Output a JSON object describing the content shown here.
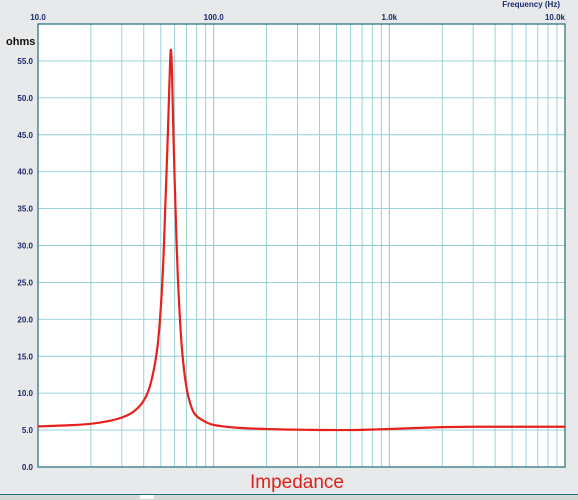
{
  "chart_data": {
    "type": "line",
    "title": "Impedance",
    "xlabel": "Frequency   (Hz)",
    "ylabel": "ohms",
    "x_scale": "log",
    "xlim": [
      10,
      10000
    ],
    "ylim": [
      0,
      60
    ],
    "x_tick_labels": [
      {
        "value": 10,
        "label": "10.0"
      },
      {
        "value": 100,
        "label": "100.0"
      },
      {
        "value": 1000,
        "label": "1.0k"
      },
      {
        "value": 10000,
        "label": "10.0k"
      }
    ],
    "y_tick_labels": [
      {
        "value": 0,
        "label": "0.0"
      },
      {
        "value": 5,
        "label": "5.0"
      },
      {
        "value": 10,
        "label": "10.0"
      },
      {
        "value": 15,
        "label": "15.0"
      },
      {
        "value": 20,
        "label": "20.0"
      },
      {
        "value": 25,
        "label": "25.0"
      },
      {
        "value": 30,
        "label": "30.0"
      },
      {
        "value": 35,
        "label": "35.0"
      },
      {
        "value": 40,
        "label": "40.0"
      },
      {
        "value": 45,
        "label": "45.0"
      },
      {
        "value": 50,
        "label": "50.0"
      },
      {
        "value": 55,
        "label": "55.0"
      }
    ],
    "grid": true,
    "series": [
      {
        "color": "#e8201c",
        "points": [
          [
            10,
            5.5
          ],
          [
            15,
            5.65
          ],
          [
            20,
            5.85
          ],
          [
            25,
            6.2
          ],
          [
            30,
            6.7
          ],
          [
            35,
            7.5
          ],
          [
            40,
            9.0
          ],
          [
            44,
            11.5
          ],
          [
            48,
            16.5
          ],
          [
            51,
            25
          ],
          [
            53,
            35
          ],
          [
            55,
            46
          ],
          [
            56,
            52
          ],
          [
            57,
            56.5
          ],
          [
            58,
            53
          ],
          [
            59,
            45
          ],
          [
            61,
            33
          ],
          [
            63,
            24
          ],
          [
            66,
            16
          ],
          [
            70,
            10.8
          ],
          [
            75,
            8.0
          ],
          [
            80,
            6.9
          ],
          [
            90,
            6.1
          ],
          [
            100,
            5.7
          ],
          [
            130,
            5.35
          ],
          [
            170,
            5.2
          ],
          [
            250,
            5.08
          ],
          [
            350,
            5.03
          ],
          [
            500,
            5.0
          ],
          [
            700,
            5.03
          ],
          [
            1000,
            5.15
          ],
          [
            1500,
            5.3
          ],
          [
            2000,
            5.4
          ],
          [
            3000,
            5.45
          ],
          [
            5000,
            5.45
          ],
          [
            7000,
            5.45
          ],
          [
            10000,
            5.45
          ]
        ]
      }
    ]
  },
  "colors": {
    "plot_background": "#ffffff",
    "grid": "#8ecdd2",
    "frame": "#1e6e78",
    "curve": "#e8201c"
  }
}
